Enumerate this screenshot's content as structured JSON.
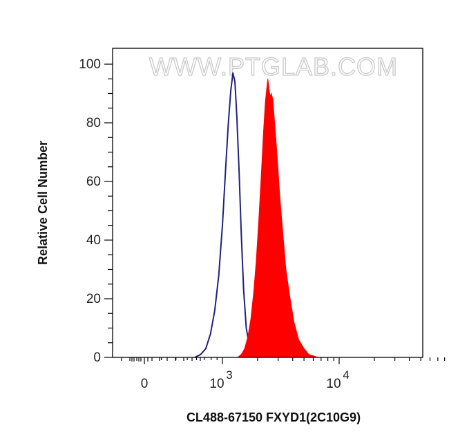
{
  "watermark": "WWW.PTGLAB.COM",
  "chart_data": {
    "type": "area",
    "xlabel": "CL488-67150 FXYD1(2C10G9)",
    "ylabel": "Relative Cell Number",
    "x_scale": "biexponential",
    "ylim": [
      0,
      100
    ],
    "yticks": [
      0,
      20,
      40,
      60,
      80,
      100
    ],
    "xticks": [
      {
        "value": 0,
        "label": "0"
      },
      {
        "value": 1000,
        "base": "10",
        "exp": "3"
      },
      {
        "value": 10000,
        "base": "10",
        "exp": "4"
      }
    ],
    "grid": false,
    "colors": {
      "control": "#1f2080",
      "sample": "#ff0000"
    },
    "series": [
      {
        "style": "outline",
        "color": "#1f2080",
        "x": [
          580,
          650,
          720,
          790,
          860,
          930,
          1000,
          1060,
          1120,
          1180,
          1230,
          1280,
          1330,
          1390,
          1450,
          1520,
          1600,
          1700,
          1800,
          1950
        ],
        "y": [
          0,
          1,
          3,
          8,
          16,
          28,
          45,
          63,
          79,
          91,
          97,
          94,
          82,
          63,
          42,
          23,
          10,
          4,
          1,
          0
        ]
      },
      {
        "style": "filled",
        "color": "#ff0000",
        "x": [
          1350,
          1450,
          1550,
          1650,
          1750,
          1850,
          1950,
          2050,
          2150,
          2250,
          2330,
          2400,
          2450,
          2500,
          2560,
          2620,
          2700,
          2800,
          2950,
          3100,
          3300,
          3500,
          3800,
          4100,
          4500,
          5000,
          5500,
          6000,
          6600
        ],
        "y": [
          0,
          1,
          3,
          7,
          13,
          22,
          33,
          47,
          62,
          77,
          87,
          92,
          95,
          92,
          89,
          90,
          88,
          80,
          68,
          55,
          42,
          30,
          20,
          12,
          6,
          3,
          1,
          0.5,
          0
        ]
      }
    ]
  }
}
